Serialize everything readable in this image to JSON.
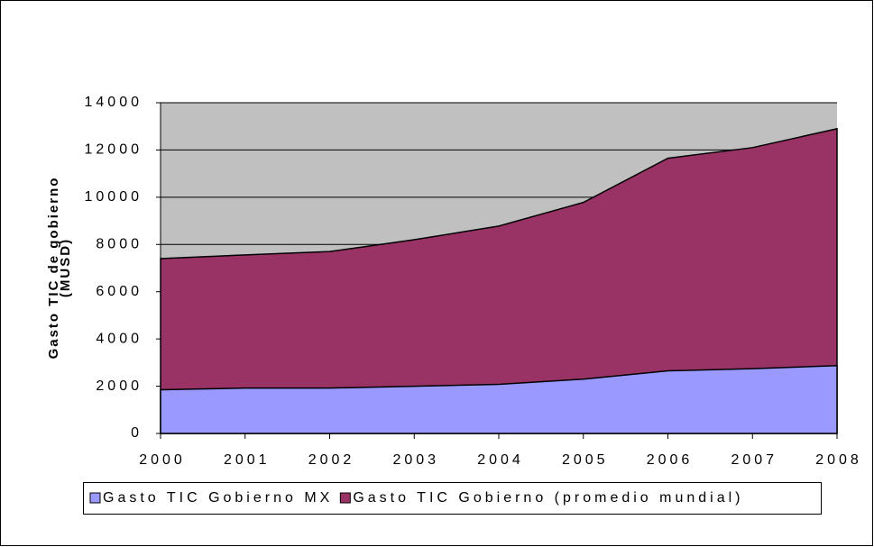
{
  "chart_data": {
    "type": "area",
    "ylabel": [
      "Gasto TIC de gobierno",
      "(MUSD)"
    ],
    "categories": [
      "2000",
      "2001",
      "2002",
      "2003",
      "2004",
      "2005",
      "2006",
      "2007",
      "2008"
    ],
    "series": [
      {
        "name": "Gasto TIC Gobierno MX",
        "color": "#9999ff",
        "values": [
          1850,
          1920,
          1920,
          2000,
          2080,
          2300,
          2650,
          2740,
          2870
        ]
      },
      {
        "name": "Gasto TIC Gobierno (promedio mundial)",
        "color": "#993366",
        "values": [
          7400,
          7560,
          7700,
          8200,
          8780,
          9780,
          11650,
          12100,
          12900
        ]
      }
    ],
    "ylim": [
      0,
      14000
    ],
    "yticks": [
      0,
      2000,
      4000,
      6000,
      8000,
      10000,
      12000,
      14000
    ],
    "grid": true,
    "plot_background": "#c0c0c0",
    "legend": "bottom"
  }
}
